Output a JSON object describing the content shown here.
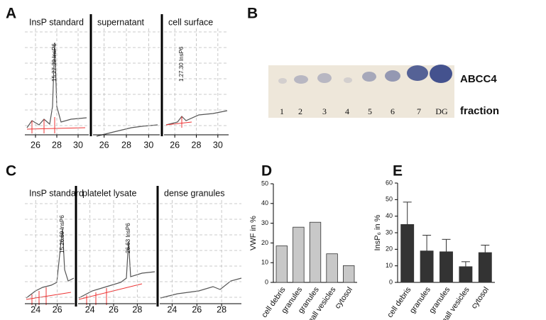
{
  "panel_labels": [
    "A",
    "B",
    "C",
    "D",
    "E"
  ],
  "panel_a": {
    "sections": [
      {
        "title": "InsP standard",
        "xlim": [
          25,
          31
        ],
        "xticks": [
          26,
          28,
          30
        ],
        "peak_label": "15.27.39 InsP6"
      },
      {
        "title": "supernatant",
        "xlim": [
          25,
          31
        ],
        "xticks": [
          26,
          28,
          30
        ]
      },
      {
        "title": "cell surface",
        "xlim": [
          25,
          31
        ],
        "xticks": [
          26,
          28,
          30
        ],
        "peak_label": "1.27.30 InsP6"
      }
    ]
  },
  "panel_b": {
    "lanes": [
      "1",
      "2",
      "3",
      "4",
      "5",
      "6",
      "7",
      "DG"
    ],
    "protein": "ABCC4",
    "axis_label": "fraction"
  },
  "panel_c": {
    "sections": [
      {
        "title": "InsP standard",
        "xlim": [
          23,
          27.6
        ],
        "xticks": [
          24,
          26
        ],
        "peak_label": "15.26.69 InsP6"
      },
      {
        "title": "platelet lysate",
        "xlim": [
          23,
          29.6
        ],
        "xticks": [
          24,
          26,
          28
        ],
        "peak_label": "26.63 InsP6"
      },
      {
        "title": "dense granules",
        "xlim": [
          23,
          29.6
        ],
        "xticks": [
          24,
          26,
          28
        ]
      }
    ]
  },
  "chart_data": [
    {
      "type": "bar",
      "y_label": "VWF in %",
      "categories": [
        "cell debris",
        "granules",
        "granules",
        "small vesicles",
        "cytosol"
      ],
      "values": [
        18.5,
        28,
        30.5,
        14.5,
        8.5
      ],
      "color": "#c8c8c8",
      "ylim": [
        0,
        50
      ],
      "yticks": [
        0,
        10,
        20,
        30,
        40,
        50
      ]
    },
    {
      "type": "bar",
      "y_label": "InsP₆ in %",
      "categories": [
        "cell debris",
        "granules",
        "granules",
        "small vesicles",
        "cytosol"
      ],
      "values": [
        35,
        19,
        18.5,
        9.5,
        18
      ],
      "errors": [
        13.5,
        9.5,
        7.5,
        3,
        4.5
      ],
      "color": "#333333",
      "ylim": [
        0,
        60
      ],
      "yticks": [
        0,
        10,
        20,
        30,
        40,
        50,
        60
      ]
    }
  ]
}
